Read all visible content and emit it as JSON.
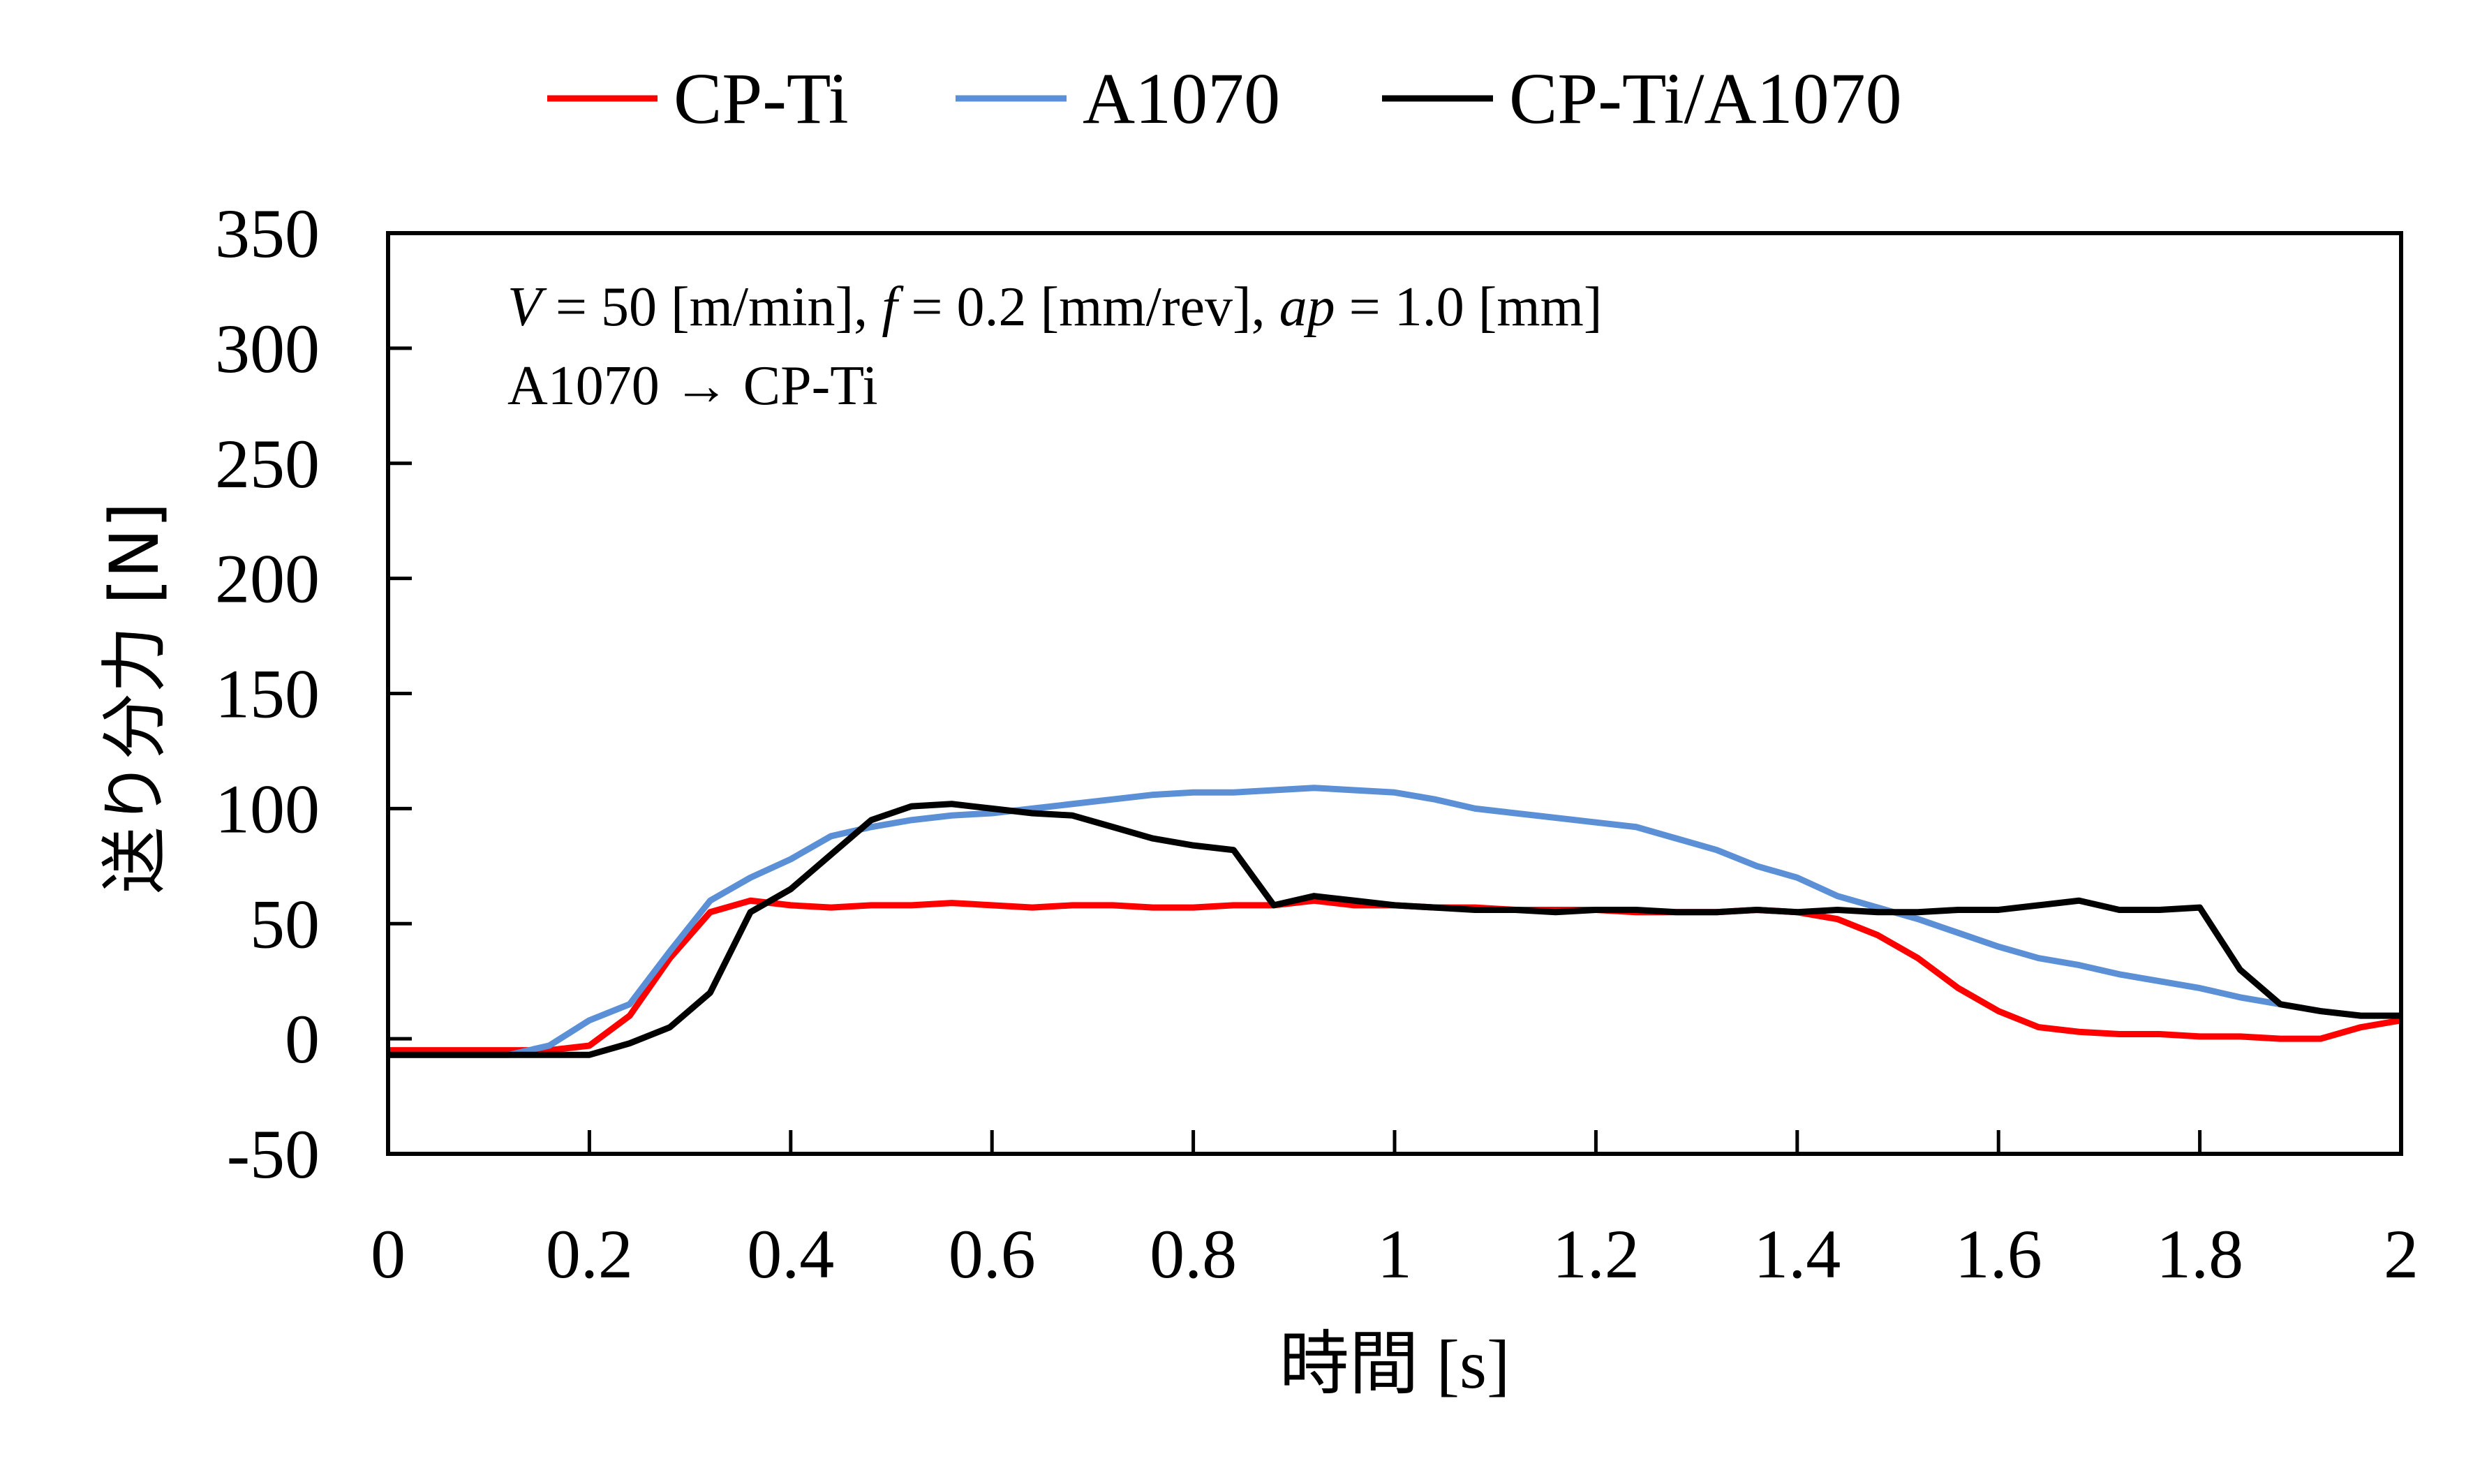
{
  "chart_data": {
    "type": "line",
    "title": "",
    "xlabel": "時間 [s]",
    "ylabel": "送り分力 [N]",
    "xlim": [
      0,
      2
    ],
    "ylim": [
      -50,
      350
    ],
    "xticks": [
      "0",
      "0.2",
      "0.4",
      "0.6",
      "0.8",
      "1",
      "1.2",
      "1.4",
      "1.6",
      "1.8",
      "2"
    ],
    "yticks": [
      "-50",
      "0",
      "50",
      "100",
      "150",
      "200",
      "250",
      "300",
      "350"
    ],
    "grid": false,
    "legend_position": "top-center",
    "annotations": [
      "V = 50 [m/min], f = 0.2 [mm/rev], ap = 1.0 [mm]",
      "A1070 → CP-Ti"
    ],
    "annotation_parts": {
      "v": "V",
      "v_rest": " = 50 [m/min], ",
      "f": "f",
      "f_rest": " = 0.2 [mm/rev], ",
      "ap": "ap",
      "ap_rest": " = 1.0 [mm]"
    },
    "x": [
      0,
      0.04,
      0.08,
      0.12,
      0.16,
      0.2,
      0.24,
      0.28,
      0.32,
      0.36,
      0.4,
      0.44,
      0.48,
      0.52,
      0.56,
      0.6,
      0.64,
      0.68,
      0.72,
      0.76,
      0.8,
      0.84,
      0.88,
      0.92,
      0.96,
      1.0,
      1.04,
      1.08,
      1.12,
      1.16,
      1.2,
      1.24,
      1.28,
      1.32,
      1.36,
      1.4,
      1.44,
      1.48,
      1.52,
      1.56,
      1.6,
      1.64,
      1.68,
      1.72,
      1.76,
      1.8,
      1.84,
      1.88,
      1.92,
      1.96,
      2.0
    ],
    "series": [
      {
        "name": "CP-Ti",
        "color": "#ff0000",
        "values": [
          -5,
          -5,
          -5,
          -5,
          -5,
          -3,
          10,
          35,
          55,
          60,
          58,
          57,
          58,
          58,
          59,
          58,
          57,
          58,
          58,
          57,
          57,
          58,
          58,
          60,
          58,
          58,
          57,
          57,
          56,
          56,
          56,
          55,
          55,
          55,
          56,
          55,
          52,
          45,
          35,
          22,
          12,
          5,
          3,
          2,
          2,
          1,
          1,
          0,
          0,
          5,
          8
        ]
      },
      {
        "name": "A1070",
        "color": "#5b8fd6",
        "values": [
          -7,
          -7,
          -7,
          -7,
          -3,
          8,
          15,
          38,
          60,
          70,
          78,
          88,
          92,
          95,
          97,
          98,
          100,
          102,
          104,
          106,
          107,
          107,
          108,
          109,
          108,
          107,
          104,
          100,
          98,
          96,
          94,
          92,
          87,
          82,
          75,
          70,
          62,
          57,
          52,
          46,
          40,
          35,
          32,
          28,
          25,
          22,
          18,
          15,
          12,
          10,
          10
        ]
      },
      {
        "name": "CP-Ti/A1070",
        "color": "#000000",
        "values": [
          -7,
          -7,
          -7,
          -7,
          -7,
          -7,
          -2,
          5,
          20,
          55,
          65,
          80,
          95,
          101,
          102,
          100,
          98,
          97,
          92,
          87,
          84,
          82,
          58,
          62,
          60,
          58,
          57,
          56,
          56,
          55,
          56,
          56,
          55,
          55,
          56,
          55,
          56,
          55,
          55,
          56,
          56,
          58,
          60,
          56,
          56,
          57,
          30,
          15,
          12,
          10,
          10
        ]
      }
    ]
  }
}
